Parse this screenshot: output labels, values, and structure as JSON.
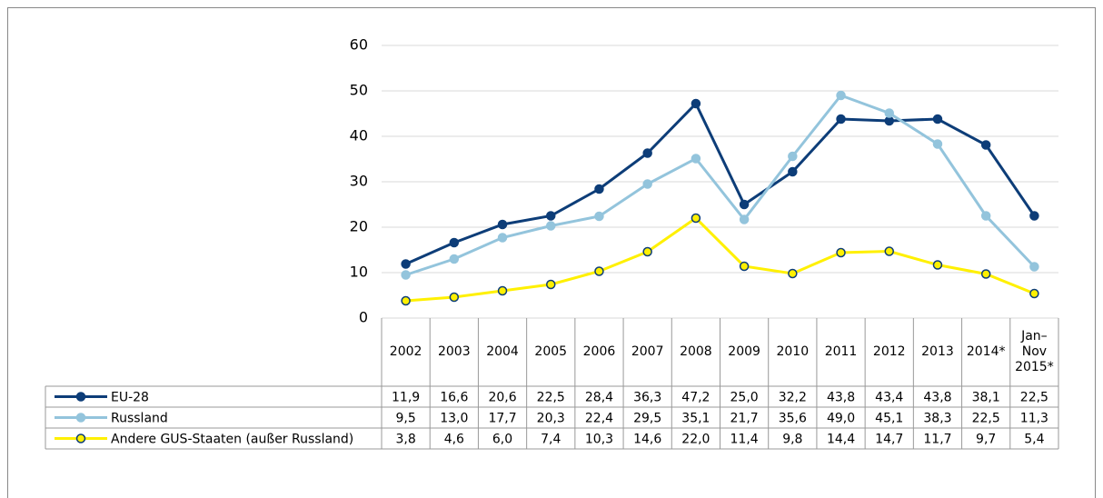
{
  "chart_data": {
    "type": "line",
    "categories": [
      "2002",
      "2003",
      "2004",
      "2005",
      "2006",
      "2007",
      "2008",
      "2009",
      "2010",
      "2011",
      "2012",
      "2013",
      "2014*",
      "Jan–\nNov\n2015*"
    ],
    "series": [
      {
        "name": "EU-28",
        "color": "#0d3d78",
        "marker_edge": "#0d3d78",
        "values": [
          11.9,
          16.6,
          20.6,
          22.5,
          28.4,
          36.3,
          47.2,
          25.0,
          32.2,
          43.8,
          43.4,
          43.8,
          38.1,
          22.5
        ],
        "value_labels": [
          "11,9",
          "16,6",
          "20,6",
          "22,5",
          "28,4",
          "36,3",
          "47,2",
          "25,0",
          "32,2",
          "43,8",
          "43,4",
          "43,8",
          "38,1",
          "22,5"
        ]
      },
      {
        "name": "Russland",
        "color": "#93c4dc",
        "marker_edge": "#93c4dc",
        "values": [
          9.5,
          13.0,
          17.7,
          20.3,
          22.4,
          29.5,
          35.1,
          21.7,
          35.6,
          49.0,
          45.1,
          38.3,
          22.5,
          11.3
        ],
        "value_labels": [
          "9,5",
          "13,0",
          "17,7",
          "20,3",
          "22,4",
          "29,5",
          "35,1",
          "21,7",
          "35,6",
          "49,0",
          "45,1",
          "38,3",
          "22,5",
          "11,3"
        ]
      },
      {
        "name": "Andere GUS-Staaten (außer Russland)",
        "color": "#fff000",
        "marker_edge": "#0d3d78",
        "values": [
          3.8,
          4.6,
          6.0,
          7.4,
          10.3,
          14.6,
          22.0,
          11.4,
          9.8,
          14.4,
          14.7,
          11.7,
          9.7,
          5.4
        ],
        "value_labels": [
          "3,8",
          "4,6",
          "6,0",
          "7,4",
          "10,3",
          "14,6",
          "22,0",
          "11,4",
          "9,8",
          "14,4",
          "14,7",
          "11,7",
          "9,7",
          "5,4"
        ]
      }
    ],
    "ylim": [
      0,
      60
    ],
    "yticks": [
      0,
      10,
      20,
      30,
      40,
      50,
      60
    ],
    "grid": true
  }
}
